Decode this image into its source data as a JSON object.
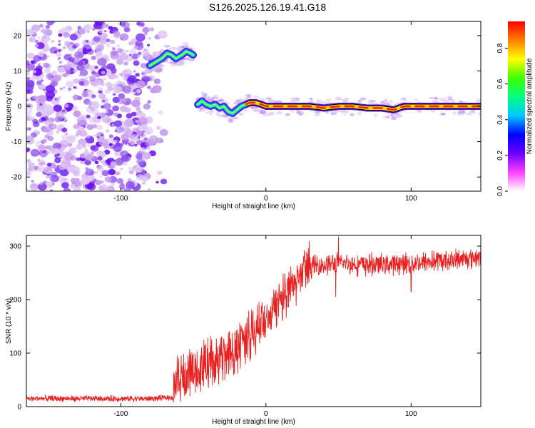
{
  "title": "S126.2025.126.19.41.G18",
  "chart_data": [
    {
      "type": "heatmap",
      "xlabel": "Height of straight line (km)",
      "ylabel": "Frequency (Hz)",
      "xlim": [
        -165,
        148
      ],
      "ylim": [
        -24,
        24
      ],
      "xticks": [
        -100,
        0,
        100
      ],
      "yticks": [
        -20,
        -10,
        0,
        10,
        20
      ],
      "colorbar": {
        "label": "Normalized spectral amplitude",
        "range": [
          0,
          0.95
        ],
        "ticks": [
          0.0,
          0.2,
          0.4,
          0.6,
          0.8
        ],
        "colormap": [
          "#ffffff",
          "#ff40ff",
          "#6a00ff",
          "#0000ff",
          "#00c8ff",
          "#00ff80",
          "#40ff00",
          "#ffff00",
          "#ff8000",
          "#ff0000"
        ]
      },
      "noise_region": {
        "x": [
          -165,
          -80
        ],
        "freq": [
          -24,
          24
        ]
      },
      "ridge": [
        [
          -80,
          11.5
        ],
        [
          -76,
          12.5
        ],
        [
          -72,
          13.5
        ],
        [
          -68,
          15
        ],
        [
          -65,
          14.5
        ],
        [
          -62,
          13.5
        ],
        [
          -58,
          14.5
        ],
        [
          -55,
          15.5
        ],
        [
          -52,
          15
        ],
        [
          -50,
          14.5
        ],
        [
          -47,
          0.5
        ],
        [
          -44,
          1.5
        ],
        [
          -41,
          0.5
        ],
        [
          -38,
          0
        ],
        [
          -35,
          0.5
        ],
        [
          -32,
          -0.5
        ],
        [
          -29,
          0
        ],
        [
          -26,
          -1.5
        ],
        [
          -23,
          -2
        ],
        [
          -20,
          -1
        ],
        [
          -17,
          0
        ],
        [
          -14,
          0.5
        ],
        [
          -11,
          1
        ],
        [
          -7,
          1
        ],
        [
          -3,
          0.5
        ],
        [
          0,
          0
        ],
        [
          10,
          0
        ],
        [
          20,
          0
        ],
        [
          30,
          0
        ],
        [
          40,
          -0.5
        ],
        [
          50,
          0
        ],
        [
          60,
          0
        ],
        [
          70,
          -0.5
        ],
        [
          80,
          -0.5
        ],
        [
          88,
          -1
        ],
        [
          95,
          0
        ],
        [
          105,
          0
        ],
        [
          115,
          0
        ],
        [
          125,
          0
        ],
        [
          135,
          0
        ],
        [
          148,
          0
        ]
      ]
    },
    {
      "type": "line",
      "xlabel": "Height of straight line (km)",
      "ylabel": "SNR (10 * v/v)",
      "xlim": [
        -165,
        148
      ],
      "ylim": [
        0,
        320
      ],
      "xticks": [
        -100,
        0,
        100
      ],
      "yticks": [
        0,
        100,
        200,
        300
      ],
      "color": "#e82020",
      "envelope": [
        [
          -165,
          15
        ],
        [
          -120,
          15
        ],
        [
          -80,
          15
        ],
        [
          -64,
          17
        ],
        [
          -62,
          45
        ],
        [
          -50,
          65
        ],
        [
          -40,
          80
        ],
        [
          -30,
          95
        ],
        [
          -20,
          115
        ],
        [
          -10,
          140
        ],
        [
          0,
          165
        ],
        [
          10,
          200
        ],
        [
          20,
          240
        ],
        [
          30,
          262
        ],
        [
          40,
          265
        ],
        [
          50,
          268
        ],
        [
          70,
          265
        ],
        [
          100,
          268
        ],
        [
          120,
          272
        ],
        [
          148,
          280
        ]
      ],
      "spikes": [
        [
          50,
          318
        ],
        [
          48,
          205
        ],
        [
          100,
          215
        ],
        [
          -55,
          25
        ]
      ]
    }
  ]
}
